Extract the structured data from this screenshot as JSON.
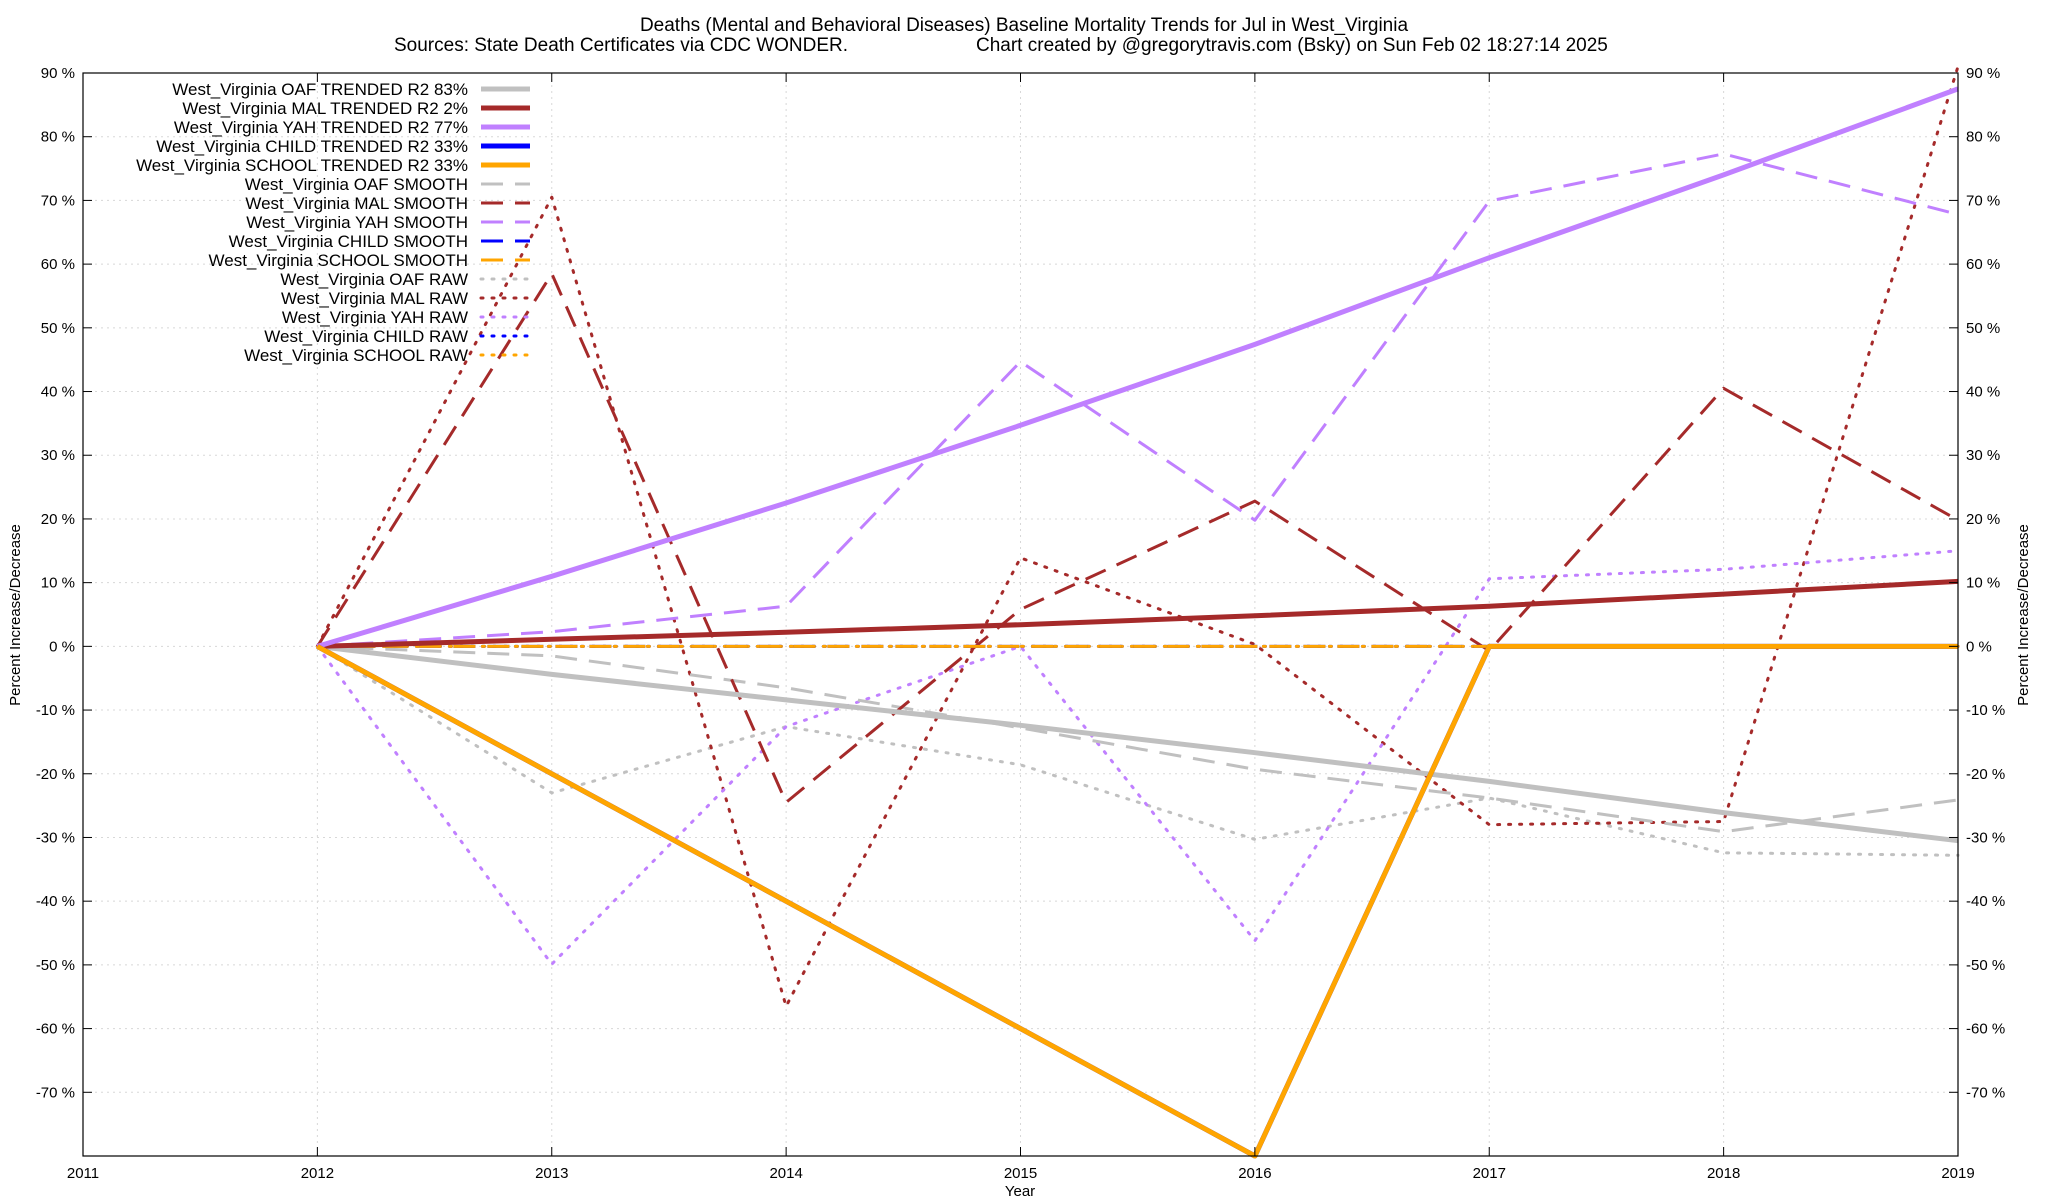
{
  "chart_data": {
    "type": "line",
    "title": "Deaths (Mental and Behavioral Diseases)  Baseline Mortality Trends for Jul in West_Virginia",
    "subtitle_left": "Sources: State Death Certificates via CDC WONDER.",
    "subtitle_right": "Chart created by @gregorytravis.com (Bsky) on Sun Feb 02 18:27:14 2025",
    "xlabel": "Year",
    "ylabel": "Percent Increase/Decrease",
    "y2label": "Percent Increase/Decrease",
    "xlim": [
      2011,
      2019
    ],
    "ylim": [
      -80,
      90
    ],
    "x_ticks": [
      2011,
      2012,
      2013,
      2014,
      2015,
      2016,
      2017,
      2018,
      2019
    ],
    "x_tick_labels": [
      "2011",
      "2012",
      "2013",
      "2014",
      "2015",
      "2016",
      "2017",
      "2018",
      "2019"
    ],
    "y_ticks": [
      -70,
      -60,
      -50,
      -40,
      -30,
      -20,
      -10,
      0,
      10,
      20,
      30,
      40,
      50,
      60,
      70,
      80,
      90
    ],
    "y_tick_labels": [
      "-70 %",
      "-60 %",
      "-50 %",
      "-40 %",
      "-30 %",
      "-20 %",
      "-10 %",
      "0 %",
      "10 %",
      "20 %",
      "30 %",
      "40 %",
      "50 %",
      "60 %",
      "70 %",
      "80 %",
      "90 %"
    ],
    "grid": true,
    "legend_position": "top-left",
    "colors": {
      "oaf": "#c0c0c0",
      "mal": "#a52a2a",
      "yah": "#c080ff",
      "child": "#0000ff",
      "school": "#ffa500"
    },
    "x": [
      2012,
      2013,
      2014,
      2015,
      2016,
      2017,
      2018,
      2019
    ],
    "series": [
      {
        "name": "West_Virginia OAF TRENDED R2  83%",
        "color_key": "oaf",
        "style": "solid",
        "width": 5,
        "values": [
          0,
          -4.4,
          -8.4,
          -12.4,
          -16.7,
          -21.2,
          -26.1,
          -30.5
        ]
      },
      {
        "name": "West_Virginia MAL TRENDED R2   2%",
        "color_key": "mal",
        "style": "solid",
        "width": 5,
        "values": [
          0,
          1.1,
          2.2,
          3.4,
          4.8,
          6.3,
          8.2,
          10.2
        ]
      },
      {
        "name": "West_Virginia YAH TRENDED R2  77%",
        "color_key": "yah",
        "style": "solid",
        "width": 5,
        "values": [
          0,
          11.0,
          22.5,
          34.7,
          47.4,
          61.0,
          74.0,
          87.5
        ]
      },
      {
        "name": "West_Virginia CHILD TRENDED R2  33%",
        "color_key": "child",
        "style": "solid",
        "width": 5,
        "values": [
          0,
          -20,
          -40,
          -60,
          -80,
          0,
          0,
          0
        ]
      },
      {
        "name": "West_Virginia SCHOOL TRENDED R2  33%",
        "color_key": "school",
        "style": "solid",
        "width": 5,
        "values": [
          0,
          -20,
          -40,
          -60,
          -80,
          0,
          0,
          0
        ]
      },
      {
        "name": "West_Virginia OAF SMOOTH",
        "color_key": "oaf",
        "style": "dashed",
        "width": 3,
        "values": [
          0,
          -1.5,
          -6.5,
          -12.8,
          -19.3,
          -23.8,
          -29.1,
          -24.1
        ]
      },
      {
        "name": "West_Virginia MAL SMOOTH",
        "color_key": "mal",
        "style": "dashed",
        "width": 3,
        "values": [
          0,
          58.5,
          -24.5,
          5.8,
          22.8,
          -0.7,
          40.5,
          19.8
        ]
      },
      {
        "name": "West_Virginia YAH SMOOTH",
        "color_key": "yah",
        "style": "dashed",
        "width": 3,
        "values": [
          0,
          2.3,
          6.3,
          44.7,
          19.8,
          69.9,
          77.3,
          67.8
        ]
      },
      {
        "name": "West_Virginia CHILD SMOOTH",
        "color_key": "child",
        "style": "dashed",
        "width": 3,
        "values": [
          0,
          0,
          0,
          0,
          0,
          0,
          0,
          0
        ]
      },
      {
        "name": "West_Virginia SCHOOL SMOOTH",
        "color_key": "school",
        "style": "dashed",
        "width": 3,
        "values": [
          0,
          0,
          0,
          0,
          0,
          0,
          0,
          0
        ]
      },
      {
        "name": "West_Virginia OAF RAW",
        "color_key": "oaf",
        "style": "dotted",
        "width": 3,
        "values": [
          0,
          -23,
          -12.6,
          -18.6,
          -30.3,
          -23.8,
          -32.4,
          -32.8
        ]
      },
      {
        "name": "West_Virginia MAL RAW",
        "color_key": "mal",
        "style": "dotted",
        "width": 3,
        "values": [
          0,
          70.5,
          -56.5,
          13.9,
          0.3,
          -28,
          -27.5,
          91
        ]
      },
      {
        "name": "West_Virginia YAH RAW",
        "color_key": "yah",
        "style": "dotted",
        "width": 3,
        "values": [
          0,
          -49.9,
          -12.6,
          0,
          -46.2,
          10.6,
          12.1,
          15
        ]
      },
      {
        "name": "West_Virginia CHILD RAW",
        "color_key": "child",
        "style": "dotted",
        "width": 3,
        "values": [
          0,
          0,
          0,
          0,
          0,
          0,
          0,
          0
        ]
      },
      {
        "name": "West_Virginia SCHOOL RAW",
        "color_key": "school",
        "style": "dotted",
        "width": 3,
        "values": [
          0,
          0,
          0,
          0,
          0,
          0,
          0,
          0
        ]
      }
    ]
  }
}
